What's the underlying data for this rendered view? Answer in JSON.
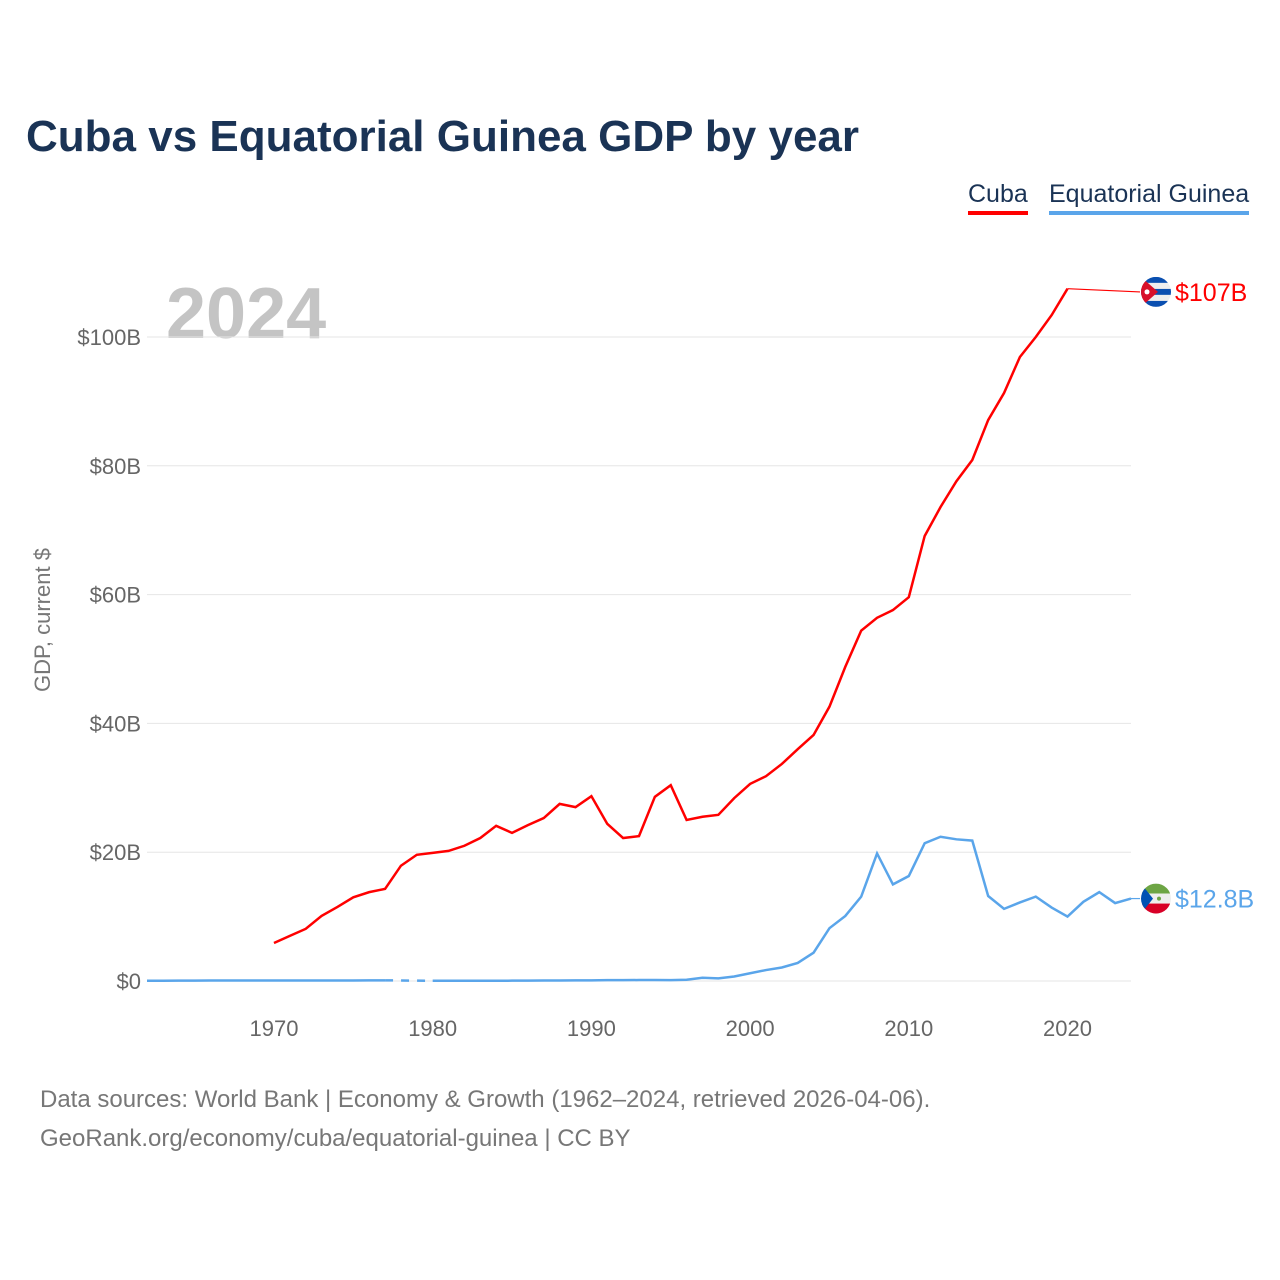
{
  "title": "Cuba vs Equatorial Guinea GDP by year",
  "legend": [
    {
      "name": "Cuba",
      "color": "#ff0000"
    },
    {
      "name": "Equatorial Guinea",
      "color": "#5aa5ea"
    }
  ],
  "year_overlay": "2024",
  "ylabel": "GDP, current $",
  "source_line1": "Data sources: World Bank | Economy & Growth (1962–2024, retrieved 2026-04-06).",
  "source_line2": "GeoRank.org/economy/cuba/equatorial-guinea | CC BY",
  "chart_data": {
    "type": "line",
    "title": "Cuba vs Equatorial Guinea GDP by year",
    "ylabel": "GDP, current $",
    "xlim": [
      1962,
      2024
    ],
    "ylim": [
      0,
      110
    ],
    "xticks": [
      1970,
      1980,
      1990,
      2000,
      2010,
      2020
    ],
    "yticks": [
      {
        "v": 0,
        "label": "$0"
      },
      {
        "v": 20,
        "label": "$20B"
      },
      {
        "v": 40,
        "label": "$40B"
      },
      {
        "v": 60,
        "label": "$60B"
      },
      {
        "v": 80,
        "label": "$80B"
      },
      {
        "v": 100,
        "label": "$100B"
      }
    ],
    "grid": true,
    "legend_position": "top-right",
    "series": [
      {
        "name": "Cuba",
        "color": "#ff0000",
        "end_label": "$107B",
        "flag": "cuba-flag",
        "start": 1970,
        "values": [
          5.9,
          7.0,
          8.1,
          10.1,
          11.5,
          13.0,
          13.8,
          14.3,
          17.9,
          19.6,
          19.9,
          20.2,
          21.0,
          22.2,
          24.1,
          23.0,
          24.2,
          25.3,
          27.5,
          27.0,
          28.7,
          24.4,
          22.2,
          22.5,
          28.6,
          30.4,
          25.0,
          25.5,
          25.8,
          28.4,
          30.6,
          31.8,
          33.7,
          36.0,
          38.2,
          42.6,
          48.8,
          54.4,
          56.4,
          57.6,
          59.6,
          69.1,
          73.6,
          77.6,
          80.9,
          87.1,
          91.3,
          96.9,
          100.0,
          103.4,
          107.5
        ],
        "last_value": 107
      },
      {
        "name": "Equatorial Guinea",
        "color": "#5aa5ea",
        "end_label": "$12.8B",
        "flag": "equatorial-guinea-flag",
        "start": 1962,
        "values": [
          0.03,
          0.04,
          0.05,
          0.06,
          0.07,
          0.07,
          0.07,
          0.07,
          0.07,
          0.07,
          0.07,
          0.07,
          0.07,
          0.08,
          0.1,
          0.1,
          null,
          null,
          0.03,
          0.03,
          0.03,
          0.03,
          0.03,
          0.05,
          0.06,
          0.07,
          0.08,
          0.1,
          0.09,
          0.13,
          0.13,
          0.15,
          0.16,
          0.14,
          0.2,
          0.5,
          0.4,
          0.7,
          1.2,
          1.7,
          2.1,
          2.8,
          4.4,
          8.2,
          10.1,
          13.1,
          19.8,
          15.0,
          16.3,
          21.4,
          22.4,
          22.0,
          21.8,
          13.2,
          11.2,
          12.2,
          13.1,
          11.4,
          10.0,
          12.3,
          13.8,
          12.1,
          12.8
        ],
        "last_value": 12.8
      }
    ]
  }
}
